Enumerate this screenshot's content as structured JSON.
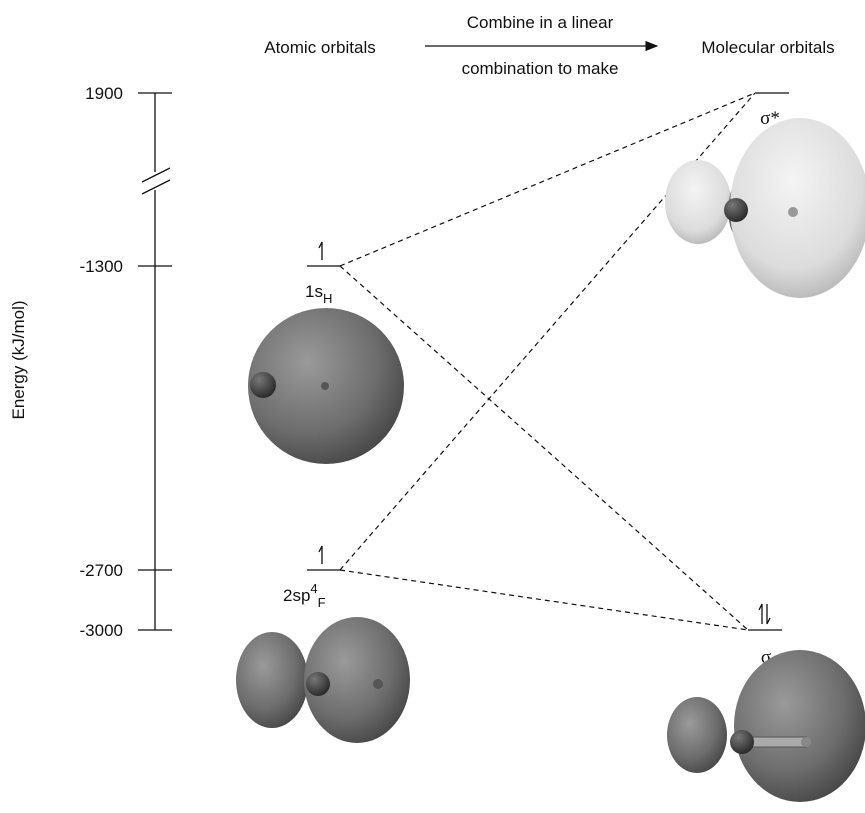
{
  "header": {
    "left": "Atomic orbitals",
    "arrow_top": "Combine in a linear",
    "arrow_bottom": "combination to make",
    "right": "Molecular orbitals"
  },
  "axis": {
    "label": "Energy (kJ/mol)",
    "ticks": [
      1900,
      -1300,
      -2700,
      -3000
    ]
  },
  "orbitals": [
    {
      "base": "1s",
      "sub": "H"
    },
    {
      "base": "2sp",
      "sup": "4",
      "sub": "F"
    },
    {
      "base": "σ*"
    },
    {
      "base": "σ"
    }
  ]
}
